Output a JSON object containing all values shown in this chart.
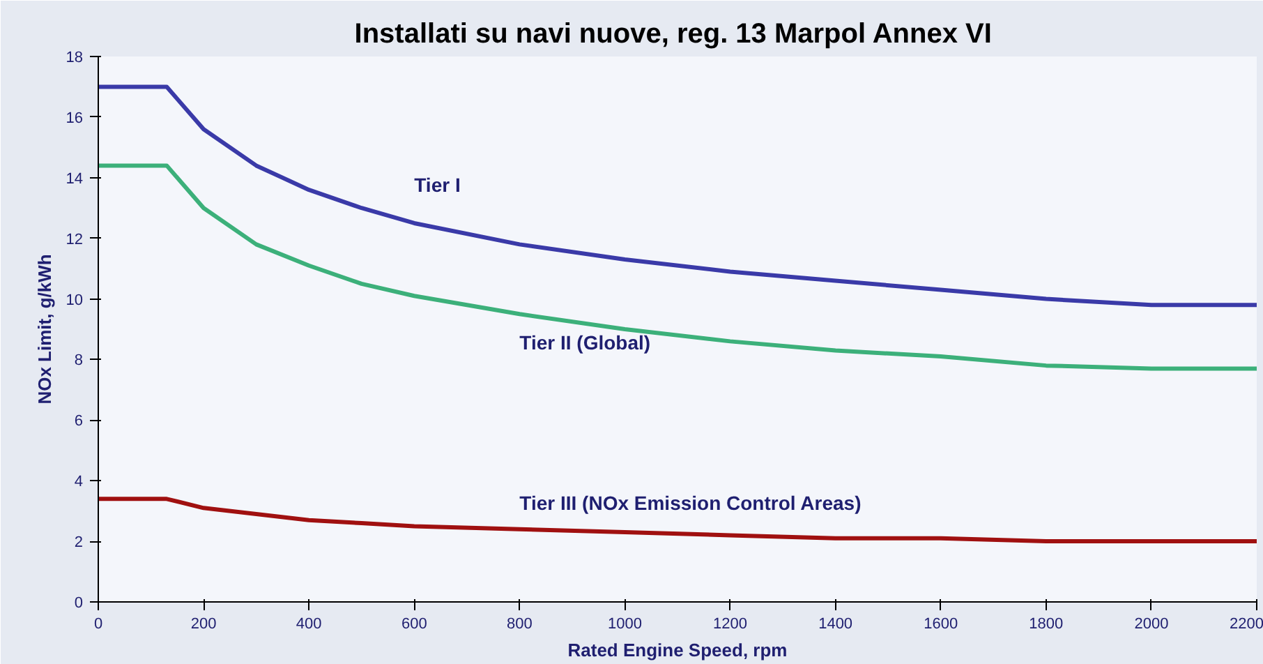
{
  "chart_data": {
    "type": "line",
    "title": "Installati su navi nuove, reg. 13 Marpol  Annex VI",
    "xlabel": "Rated Engine Speed, rpm",
    "ylabel": "NOx Limit, g/kWh",
    "x": [
      0,
      130,
      200,
      300,
      400,
      500,
      600,
      800,
      1000,
      1200,
      1400,
      1600,
      1800,
      2000,
      2200
    ],
    "series": [
      {
        "name": "Tier I",
        "color": "#3a3aa8",
        "values": [
          17,
          17,
          15.6,
          14.4,
          13.6,
          13.0,
          12.5,
          11.8,
          11.3,
          10.9,
          10.6,
          10.3,
          10.0,
          9.8,
          9.8
        ]
      },
      {
        "name": "Tier II (Global)",
        "color": "#3cb07a",
        "values": [
          14.4,
          14.4,
          13.0,
          11.8,
          11.1,
          10.5,
          10.1,
          9.5,
          9.0,
          8.6,
          8.3,
          8.1,
          7.8,
          7.7,
          7.7
        ]
      },
      {
        "name": "Tier III (NOx Emission Control Areas)",
        "color": "#a01010",
        "values": [
          3.4,
          3.4,
          3.1,
          2.9,
          2.7,
          2.6,
          2.5,
          2.4,
          2.3,
          2.2,
          2.1,
          2.1,
          2.0,
          2.0,
          2.0
        ]
      }
    ],
    "xlim": [
      0,
      2200
    ],
    "ylim": [
      0,
      18
    ],
    "xticks": [
      0,
      200,
      400,
      600,
      800,
      1000,
      1200,
      1400,
      1600,
      1800,
      2000,
      2200
    ],
    "yticks": [
      0,
      2,
      4,
      6,
      8,
      10,
      12,
      14,
      16,
      18
    ],
    "grid": false,
    "marker": "none",
    "line_style": "solid"
  }
}
